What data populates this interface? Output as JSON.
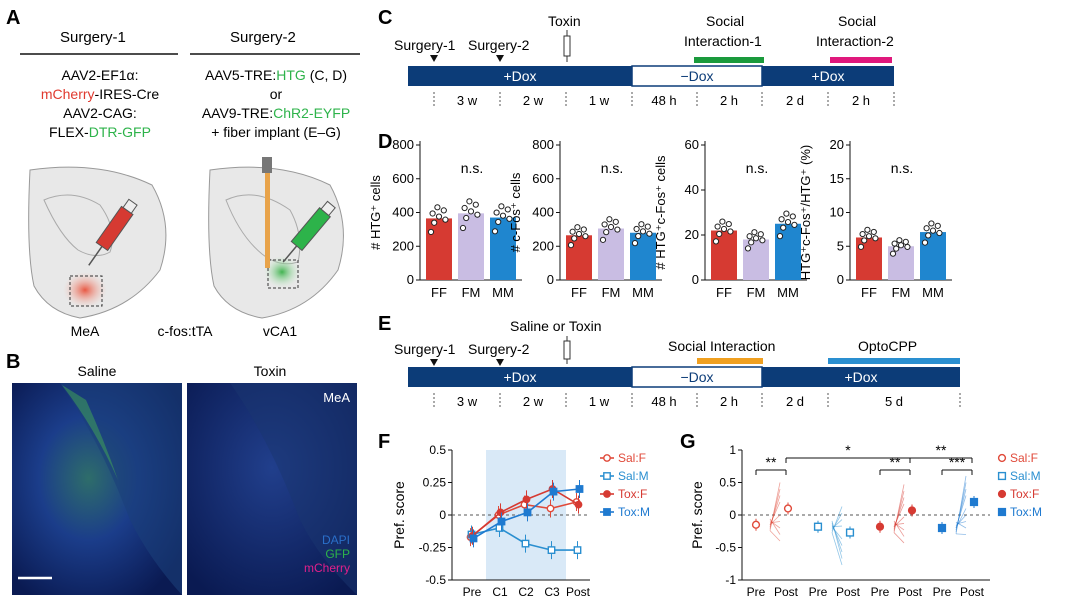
{
  "panel_labels": [
    "A",
    "B",
    "C",
    "D",
    "E",
    "F",
    "G"
  ],
  "panelA": {
    "surgery1": "Surgery-1",
    "surgery2": "Surgery-2",
    "s1_line1": "AAV2-EF1α:",
    "s1_line2a": "mCherry",
    "s1_line2b": "-IRES-Cre",
    "s1_line3": "AAV2-CAG:",
    "s1_line4a": "FLEX-",
    "s1_line4b": "DTR-GFP",
    "s2_line1a": "AAV5-TRE:",
    "s2_line1b": "HTG",
    "s2_line1c": " (C, D)",
    "s2_line2": "or",
    "s2_line3a": "AAV9-TRE:",
    "s2_line3b": "ChR2-EYFP",
    "s2_line4": "+ fiber implant (E–G)",
    "region1": "MeA",
    "mouse": "c-fos:tTA",
    "region2": "vCA1"
  },
  "panelB": {
    "saline": "Saline",
    "toxin": "Toxin",
    "region": "MeA",
    "legend": [
      "DAPI",
      "GFP",
      "mCherry"
    ],
    "colors": {
      "dapi": "#2a6fc9",
      "gfp": "#2db34a",
      "mcherry": "#e0208a"
    }
  },
  "panelC": {
    "events": [
      "Surgery-1",
      "Surgery-2",
      "Toxin",
      "Social",
      "Interaction-1",
      "Social",
      "Interaction-2"
    ],
    "bar": [
      "+Dox",
      "−Dox",
      "+Dox"
    ],
    "durations": [
      "3 w",
      "2 w",
      "1 w",
      "48 h",
      "2 h",
      "2 d",
      "2 h"
    ],
    "colors": {
      "dox": "#0c3c78",
      "si1": "#1a9a3c",
      "si2": "#e0187c"
    }
  },
  "panelE": {
    "events": [
      "Surgery-1",
      "Surgery-2",
      "Saline or Toxin",
      "Social Interaction",
      "OptoCPP"
    ],
    "bar": [
      "+Dox",
      "−Dox",
      "+Dox"
    ],
    "durations": [
      "3 w",
      "2 w",
      "1 w",
      "48 h",
      "2 h",
      "2 d",
      "5 d"
    ],
    "colors": {
      "si": "#f0a020",
      "cpp": "#2a8fd0"
    }
  },
  "chart_data": [
    {
      "type": "bar",
      "panel": "D1",
      "ylabel": "# HTG⁺ cells",
      "categories": [
        "FF",
        "FM",
        "MM"
      ],
      "values": [
        365,
        395,
        370
      ],
      "ylim": [
        0,
        800
      ],
      "yticks": [
        "0",
        "200",
        "400",
        "600",
        "800"
      ],
      "annotation": "n.s."
    },
    {
      "type": "bar",
      "panel": "D2",
      "ylabel": "# c-Fos⁺ cells",
      "categories": [
        "FF",
        "FM",
        "MM"
      ],
      "values": [
        265,
        305,
        280
      ],
      "ylim": [
        0,
        800
      ],
      "yticks": [
        "0",
        "200",
        "400",
        "600",
        "800"
      ],
      "annotation": "n.s."
    },
    {
      "type": "bar",
      "panel": "D3",
      "ylabel": "# HTG⁺c-Fos⁺ cells",
      "categories": [
        "FF",
        "FM",
        "MM"
      ],
      "values": [
        22,
        18,
        25
      ],
      "ylim": [
        0,
        60
      ],
      "yticks": [
        "0",
        "20",
        "40",
        "60"
      ],
      "annotation": "n.s."
    },
    {
      "type": "bar",
      "panel": "D4",
      "ylabel": "HTG⁺c-Fos⁺/HTG⁺ (%)",
      "categories": [
        "FF",
        "FM",
        "MM"
      ],
      "values": [
        6.3,
        5.0,
        7.1
      ],
      "ylim": [
        0,
        20
      ],
      "yticks": [
        "0",
        "5",
        "10",
        "15",
        "20"
      ],
      "annotation": "n.s.",
      "colors": [
        "#d63a32",
        "#c9bde3",
        "#1f86cf"
      ]
    },
    {
      "type": "line",
      "panel": "F",
      "ylabel": "Pref. score",
      "categories": [
        "Pre",
        "C1",
        "C2",
        "C3",
        "Post"
      ],
      "series": [
        {
          "name": "Sal:F",
          "values": [
            -0.17,
            0.0,
            0.08,
            0.05,
            0.1
          ]
        },
        {
          "name": "Sal:M",
          "values": [
            -0.15,
            -0.1,
            -0.22,
            -0.27,
            -0.27
          ]
        },
        {
          "name": "Tox:F",
          "values": [
            -0.16,
            0.02,
            0.12,
            0.2,
            0.08
          ]
        },
        {
          "name": "Tox:M",
          "values": [
            -0.18,
            -0.05,
            0.02,
            0.18,
            0.2
          ]
        }
      ],
      "ylim": [
        -0.5,
        0.5
      ],
      "yticks": [
        "-0.5",
        "-0.25",
        "0",
        "0.25",
        "0.5"
      ],
      "shaded": "C1–C3"
    },
    {
      "type": "scatter",
      "panel": "G",
      "ylabel": "Pref. score",
      "groups": [
        "Sal:F",
        "Sal:M",
        "Tox:F",
        "Tox:M"
      ],
      "x": [
        "Pre",
        "Post"
      ],
      "means": [
        [
          -0.15,
          0.1
        ],
        [
          -0.18,
          -0.27
        ],
        [
          -0.18,
          0.07
        ],
        [
          -0.2,
          0.2
        ]
      ],
      "ylim": [
        -1,
        1
      ],
      "yticks": [
        "-1",
        "-0.5",
        "0",
        "0.5",
        "1"
      ],
      "significance": [
        "**",
        "*",
        "**",
        "**",
        "***"
      ]
    }
  ],
  "legend": [
    "Sal:F",
    "Sal:M",
    "Tox:F",
    "Tox:M"
  ],
  "legend_colors": {
    "sal_f": "#e04a3a",
    "sal_m": "#2a8fd0",
    "tox_f": "#d63a32",
    "tox_m": "#1f7ad0"
  }
}
